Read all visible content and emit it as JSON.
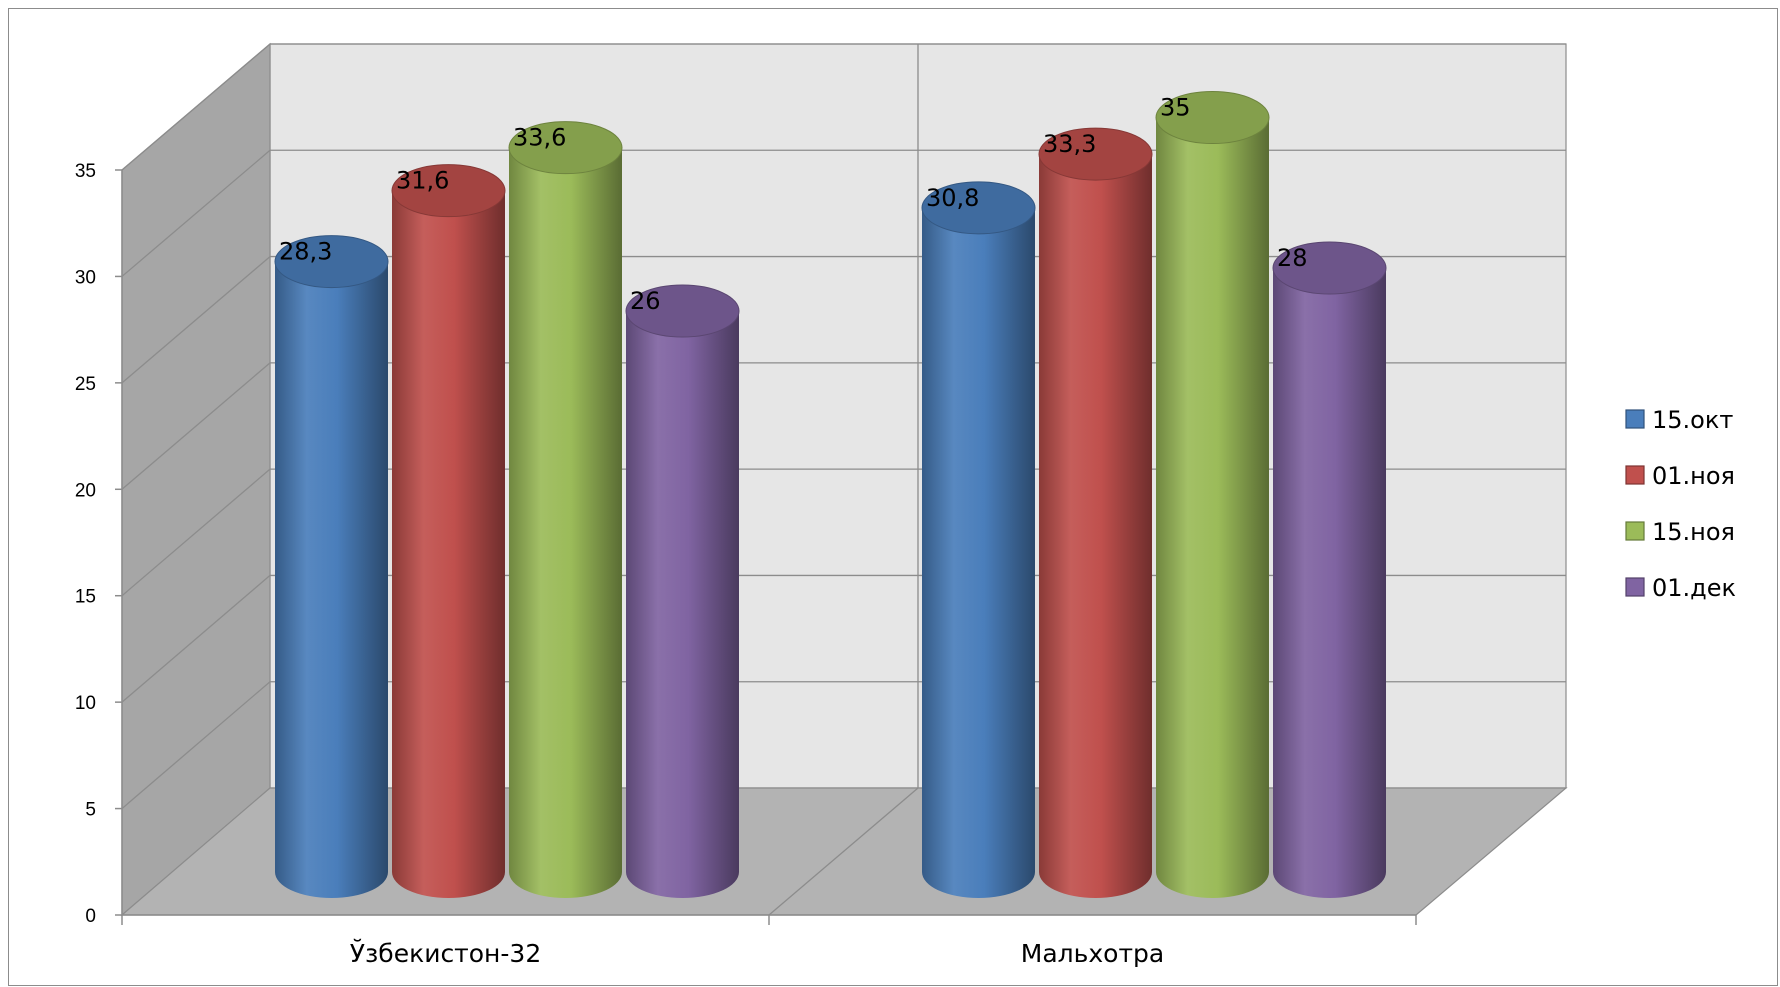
{
  "chart_data": {
    "type": "bar",
    "style": "3d-cylinder",
    "categories": [
      "Ўзбекистон-32",
      "Мальхотра"
    ],
    "series": [
      {
        "name": "15.окт",
        "values": [
          28.3,
          30.8
        ],
        "labels": [
          "28,3",
          "30,8"
        ],
        "color": "#4a7ebb"
      },
      {
        "name": "01.ноя",
        "values": [
          31.6,
          33.3
        ],
        "labels": [
          "31,6",
          "33,3"
        ],
        "color": "#c0504d"
      },
      {
        "name": "15.ноя",
        "values": [
          33.6,
          35
        ],
        "labels": [
          "33,6",
          "35"
        ],
        "color": "#9bbb59"
      },
      {
        "name": "01.дек",
        "values": [
          26,
          28
        ],
        "labels": [
          "26",
          "28"
        ],
        "color": "#8064a2"
      }
    ],
    "ylim": [
      0,
      35
    ],
    "yticks": [
      "0",
      "5",
      "10",
      "15",
      "20",
      "25",
      "30",
      "35"
    ],
    "grid": true,
    "legend_position": "right",
    "wall_color": "#e6e6e6",
    "side_wall_color": "#a6a6a6",
    "floor_color": "#b3b3b3"
  }
}
